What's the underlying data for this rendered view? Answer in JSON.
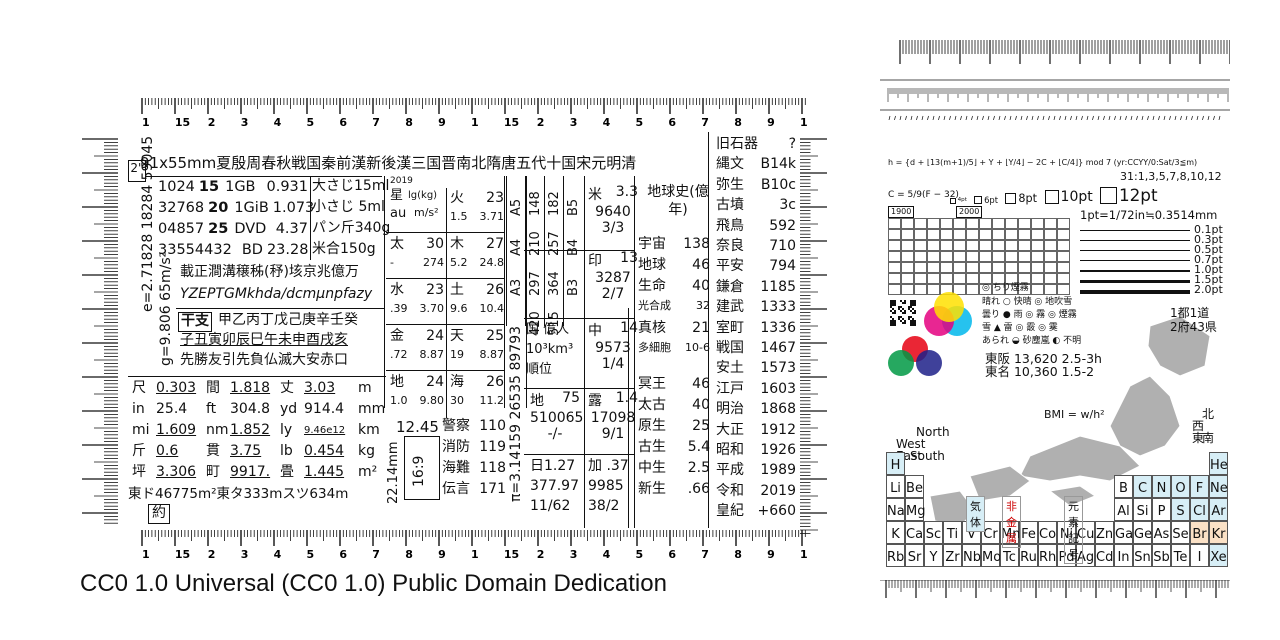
{
  "caption": "CC0 1.0 Universal (CC0 1.0) Public Domain Dedication",
  "ruler_top_labels": [
    "1",
    "15",
    "2",
    "3",
    "4",
    "5",
    "6",
    "7",
    "8",
    "9",
    "1",
    "15",
    "2",
    "3",
    "4",
    "5",
    "6",
    "7",
    "8",
    "9",
    "1"
  ],
  "ruler_bottom_labels": [
    "1",
    "15",
    "2",
    "3",
    "4",
    "5",
    "6",
    "7",
    "8",
    "9",
    "1",
    "15",
    "2",
    "3",
    "4",
    "5",
    "6",
    "7",
    "8",
    "9",
    "1"
  ],
  "card": {
    "header": "91x55mm夏殷周春秋戦国秦前漢新後漢三国晋南北隋唐五代十国宋元明清",
    "corner": "2\"",
    "storage": [
      [
        "1024",
        "15",
        "1GB",
        "0.931"
      ],
      [
        "32768",
        "20",
        "1GiB",
        "1.073"
      ],
      [
        "04857",
        "25",
        "DVD",
        "4.37"
      ],
      [
        "33554432",
        "",
        "BD",
        "23.28"
      ]
    ],
    "spoons": [
      "大さじ15ml",
      "小さじ 5ml",
      "パン斤340g",
      "米合150g"
    ],
    "kanji_numbers": "載正澗溝穣秭(𥝱)垓京兆億万",
    "si_prefixes": "YZEPTGMkhda/dcmμnpfazy",
    "eto_label": "干支",
    "eto_row1": "甲乙丙丁戊己庚辛壬癸",
    "eto_row2": "子丑寅卯辰巳午未申酉戌亥",
    "rokuyo": "先勝友引先負仏滅大安赤口",
    "left_vertical_1": "2.71828 18284 59045",
    "left_vertical_2": "9.806 65m/s²",
    "left_vertical_e": "e=",
    "left_vertical_g": "g=",
    "units": [
      [
        "尺",
        "0.303",
        "間",
        "1.818",
        "丈",
        "3.03",
        "m"
      ],
      [
        "in",
        "25.4",
        "ft",
        "304.8",
        "yd",
        "914.4",
        "mm"
      ],
      [
        "mi",
        "1.609",
        "nm",
        "1.852",
        "ly",
        "9.46e12",
        "km"
      ],
      [
        "斤",
        "0.6",
        "貫",
        "3.75",
        "lb",
        "0.454",
        "kg"
      ],
      [
        "坪",
        "3.306",
        "町",
        "9917.",
        "畳",
        "1.445",
        "m²"
      ]
    ],
    "units_footer": "東ド46775m²東タ333mスツ634m",
    "yaku": "約",
    "planet_header": [
      "星",
      "lg(kg)",
      "au",
      "m/s²"
    ],
    "planets": [
      {
        "name": "火",
        "v": "23",
        "a": "1.5",
        "b": "3.71"
      },
      {
        "name": "太",
        "v": "30",
        "a": "-",
        "b": "274"
      },
      {
        "name": "木",
        "v": "27",
        "a": "5.2",
        "b": "24.8"
      },
      {
        "name": "水",
        "v": "23",
        "a": ".39",
        "b": "3.70"
      },
      {
        "name": "土",
        "v": "26",
        "a": "9.6",
        "b": "10.4"
      },
      {
        "name": "金",
        "v": "24",
        "a": ".72",
        "b": "8.87"
      },
      {
        "name": "天",
        "v": "25",
        "a": "19",
        "b": "8.87"
      },
      {
        "name": "地",
        "v": "24",
        "a": "1.0",
        "b": "9.80"
      },
      {
        "name": "海",
        "v": "26",
        "a": "30",
        "b": "11.2"
      }
    ],
    "year_label": "2019",
    "emergency": [
      [
        "警察",
        "110"
      ],
      [
        "消防",
        "119"
      ],
      [
        "海難",
        "118"
      ],
      [
        "伝言",
        "171"
      ]
    ],
    "ratio_12_45": "12.45",
    "ratio_16_9": "16:9",
    "mm_label": "22.14mm",
    "paper_sizes": [
      "A5 148",
      "A4 210",
      "A3 297",
      "B5 182",
      "B4 257",
      "B3 364",
      "420",
      "515"
    ],
    "pi": "π=3.14159 26535 89793",
    "country": [
      [
        "国",
        "億人"
      ],
      [
        "10³km³",
        ""
      ],
      [
        "順位",
        ""
      ]
    ],
    "country_rows": [
      {
        "n": "米",
        "v1": "3.3",
        "v2": "9640",
        "v3": "3/3"
      },
      {
        "n": "印",
        "v1": "13",
        "v2": "3287",
        "v3": "2/7"
      },
      {
        "n": "中",
        "v1": "14",
        "v2": "9573",
        "v3": "1/4"
      },
      {
        "n": "地",
        "v1": "75",
        "v2": "510065",
        "v3": "-/-"
      },
      {
        "n": "露",
        "v1": "1.4",
        "v2": "17098",
        "v3": "9/1"
      }
    ],
    "day_year": [
      [
        "日",
        "1.27"
      ],
      [
        "",
        "377.97"
      ],
      [
        "",
        "11/62"
      ]
    ],
    "kasei": [
      [
        "加",
        ".37"
      ],
      [
        "",
        "9985"
      ],
      [
        "",
        "38/2"
      ]
    ],
    "earth_history_title": "地球史(億年)",
    "earth_history": [
      [
        "宇宙",
        "138"
      ],
      [
        "地球",
        "46"
      ],
      [
        "生命",
        "40"
      ],
      [
        "光合成",
        "32"
      ],
      [
        "真核",
        "21"
      ],
      [
        "多細胞",
        "10-6"
      ],
      [
        "冥王",
        "46"
      ],
      [
        "太古",
        "40"
      ],
      [
        "原生",
        "25"
      ],
      [
        "古生",
        "5.4"
      ],
      [
        "中生",
        "2.5"
      ],
      [
        "新生",
        ".66"
      ]
    ],
    "eras": [
      [
        "旧石器",
        "?"
      ],
      [
        "縄文",
        "B14k"
      ],
      [
        "弥生",
        "B10c"
      ],
      [
        "古墳",
        "3c"
      ],
      [
        "飛鳥",
        "592"
      ],
      [
        "奈良",
        "710"
      ],
      [
        "平安",
        "794"
      ],
      [
        "鎌倉",
        "1185"
      ],
      [
        "建武",
        "1333"
      ],
      [
        "室町",
        "1336"
      ],
      [
        "戦国",
        "1467"
      ],
      [
        "安土",
        "1573"
      ],
      [
        "江戸",
        "1603"
      ],
      [
        "明治",
        "1868"
      ],
      [
        "大正",
        "1912"
      ],
      [
        "昭和",
        "1926"
      ],
      [
        "平成",
        "1989"
      ],
      [
        "令和",
        "2019"
      ],
      [
        "皇紀",
        "+660"
      ]
    ]
  },
  "right": {
    "formula": "h = {d + ⌊13(m+1)/5⌋ + Y + ⌊Y/4⌋ − 2C + ⌊C/4⌋} mod 7 (yr:CCYY/0:Sat/3≦m)",
    "formula_note": "31:1,3,5,7,8,10,12",
    "celsius": "C = 5/9(F − 32)",
    "pt_sizes": [
      "4pt",
      "6pt",
      "8pt",
      "10pt",
      "12pt"
    ],
    "pt_def": "1pt=1/72in≒0.3514mm",
    "line_widths": [
      "0.1pt",
      "0.3pt",
      "0.5pt",
      "0.7pt",
      "1.0pt",
      "1.5pt",
      "2.0pt"
    ],
    "calendar_years": [
      "1900",
      "2000"
    ],
    "weather": [
      "晴れ",
      "快晴",
      "地吹雪",
      "曇り",
      "雨",
      "霧",
      "煙霧",
      "雪",
      "雷",
      "霰",
      "霙",
      "あられ",
      "ちり煙霧",
      "砂塵嵐",
      "不明"
    ],
    "japan_title": [
      "1都1道",
      "2府43県"
    ],
    "tokyo_osaka": [
      [
        "東阪",
        "13,620 2.5-3h"
      ],
      [
        "東名",
        "10,360 1.5-2"
      ]
    ],
    "compass": [
      "北",
      "西",
      "東",
      "南"
    ],
    "nwes": [
      "North",
      "West",
      "East",
      "South"
    ],
    "bmi": "BMI = w/h²",
    "elements_row1": [
      "H",
      "He"
    ],
    "elements_row2": [
      "Li",
      "Be",
      "B",
      "C",
      "N",
      "O",
      "F",
      "Ne"
    ],
    "elements_row3": [
      "Na",
      "Mg",
      "Al",
      "Si",
      "P",
      "S",
      "Cl",
      "Ar"
    ],
    "elements_row4": [
      "K",
      "Ca",
      "Sc",
      "Ti",
      "V",
      "Cr",
      "Mn",
      "Fe",
      "Co",
      "Ni",
      "Cu",
      "Zn",
      "Ga",
      "Ge",
      "As",
      "Se",
      "Br",
      "Kr"
    ],
    "elements_row5": [
      "Rb",
      "Sr",
      "Y",
      "Zr",
      "Nb",
      "Mo",
      "Tc",
      "Ru",
      "Rh",
      "Pd",
      "Ag",
      "Cd",
      "In",
      "Sn",
      "Sb",
      "Te",
      "I",
      "Xe"
    ],
    "element_labels": [
      "気体",
      "非金属",
      "元素記号"
    ],
    "colors": {
      "cyan": "#00b7eb",
      "magenta": "#e4007f",
      "yellow": "#ffe100",
      "red": "#e60012",
      "green": "#009944",
      "blue": "#1d2088",
      "sea": "#d8eef5",
      "land": "#b0b0b0"
    }
  }
}
